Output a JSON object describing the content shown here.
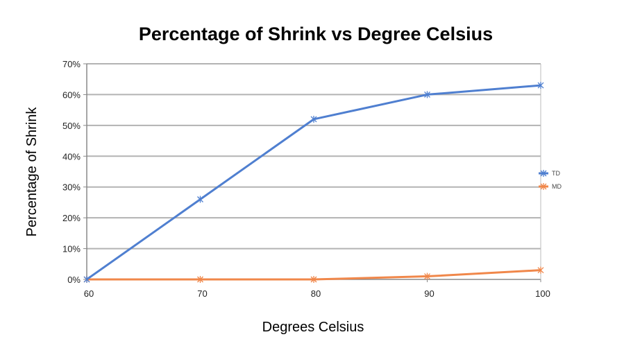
{
  "chart_data": {
    "type": "line",
    "title": "Percentage of Shrink vs Degree Celsius",
    "xlabel": "Degrees Celsius",
    "ylabel": "Percentage of Shrink",
    "x": [
      60,
      70,
      80,
      90,
      100
    ],
    "x_tick_labels": [
      "60",
      "70",
      "80",
      "90",
      "100"
    ],
    "y_tick_labels": [
      "0%",
      "10%",
      "20%",
      "30%",
      "40%",
      "50%",
      "60%",
      "70%"
    ],
    "ylim": [
      0,
      70
    ],
    "y_unit": "percent",
    "grid": true,
    "legend_position": "right",
    "series": [
      {
        "name": "TD",
        "values": [
          0,
          26,
          52,
          60,
          63
        ],
        "color": "#4F7FD0"
      },
      {
        "name": "MD",
        "values": [
          0,
          0,
          0,
          1,
          3
        ],
        "color": "#F0874A"
      }
    ]
  }
}
